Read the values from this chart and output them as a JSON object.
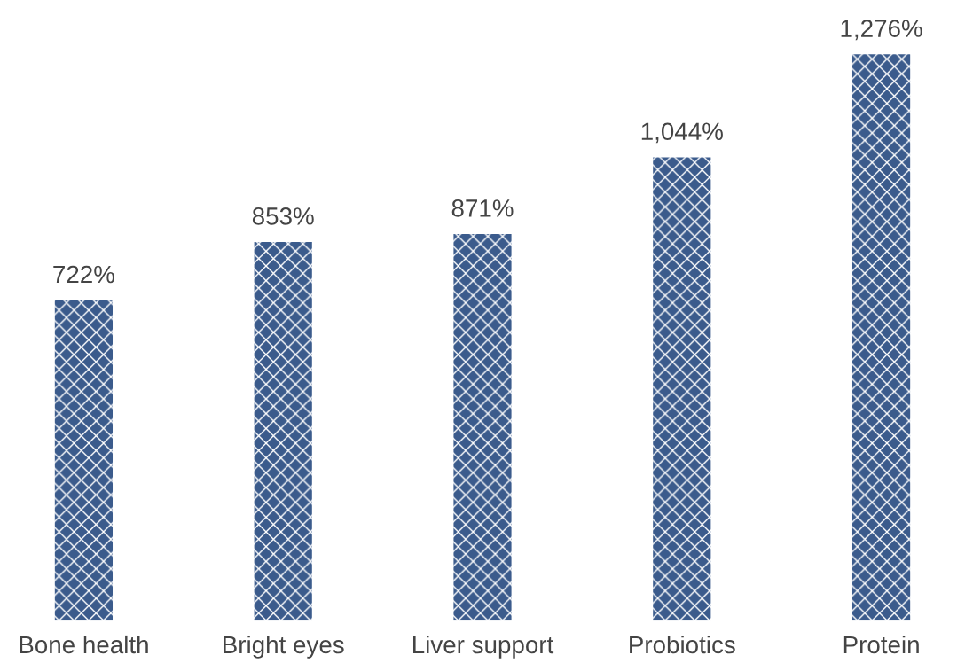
{
  "chart_data": {
    "type": "bar",
    "categories": [
      "Bone health",
      "Bright eyes",
      "Liver support",
      "Probiotics",
      "Protein"
    ],
    "values": [
      722,
      853,
      871,
      1044,
      1276
    ],
    "value_labels": [
      "722%",
      "853%",
      "871%",
      "1,044%",
      "1,276%"
    ],
    "color": "#3b5b8c"
  }
}
